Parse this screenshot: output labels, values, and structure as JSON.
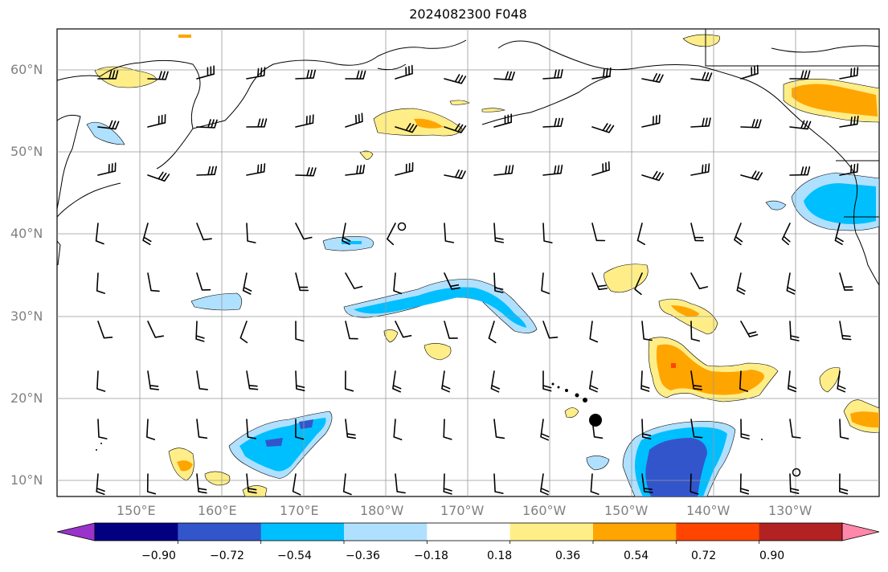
{
  "title": "2024082300 F048",
  "lat_labels": [
    "60°N",
    "50°N",
    "40°N",
    "30°N",
    "20°N",
    "10°N"
  ],
  "lon_labels": [
    "150°E",
    "160°E",
    "170°E",
    "180°W",
    "170°W",
    "160°W",
    "150°W",
    "140°W",
    "130°W"
  ],
  "colorbar": {
    "ticks": [
      "−0.90",
      "−0.72",
      "−0.54",
      "−0.36",
      "−0.18",
      "0.18",
      "0.36",
      "0.54",
      "0.72",
      "0.90"
    ],
    "colors": [
      "#9933cc",
      "#000080",
      "#3355cc",
      "#00bfff",
      "#b0e0ff",
      "#ffffff",
      "#ffee88",
      "#ffa500",
      "#ff4500",
      "#b22222",
      "#ff88aa"
    ]
  },
  "markers": [
    "hurricane-marker"
  ]
}
